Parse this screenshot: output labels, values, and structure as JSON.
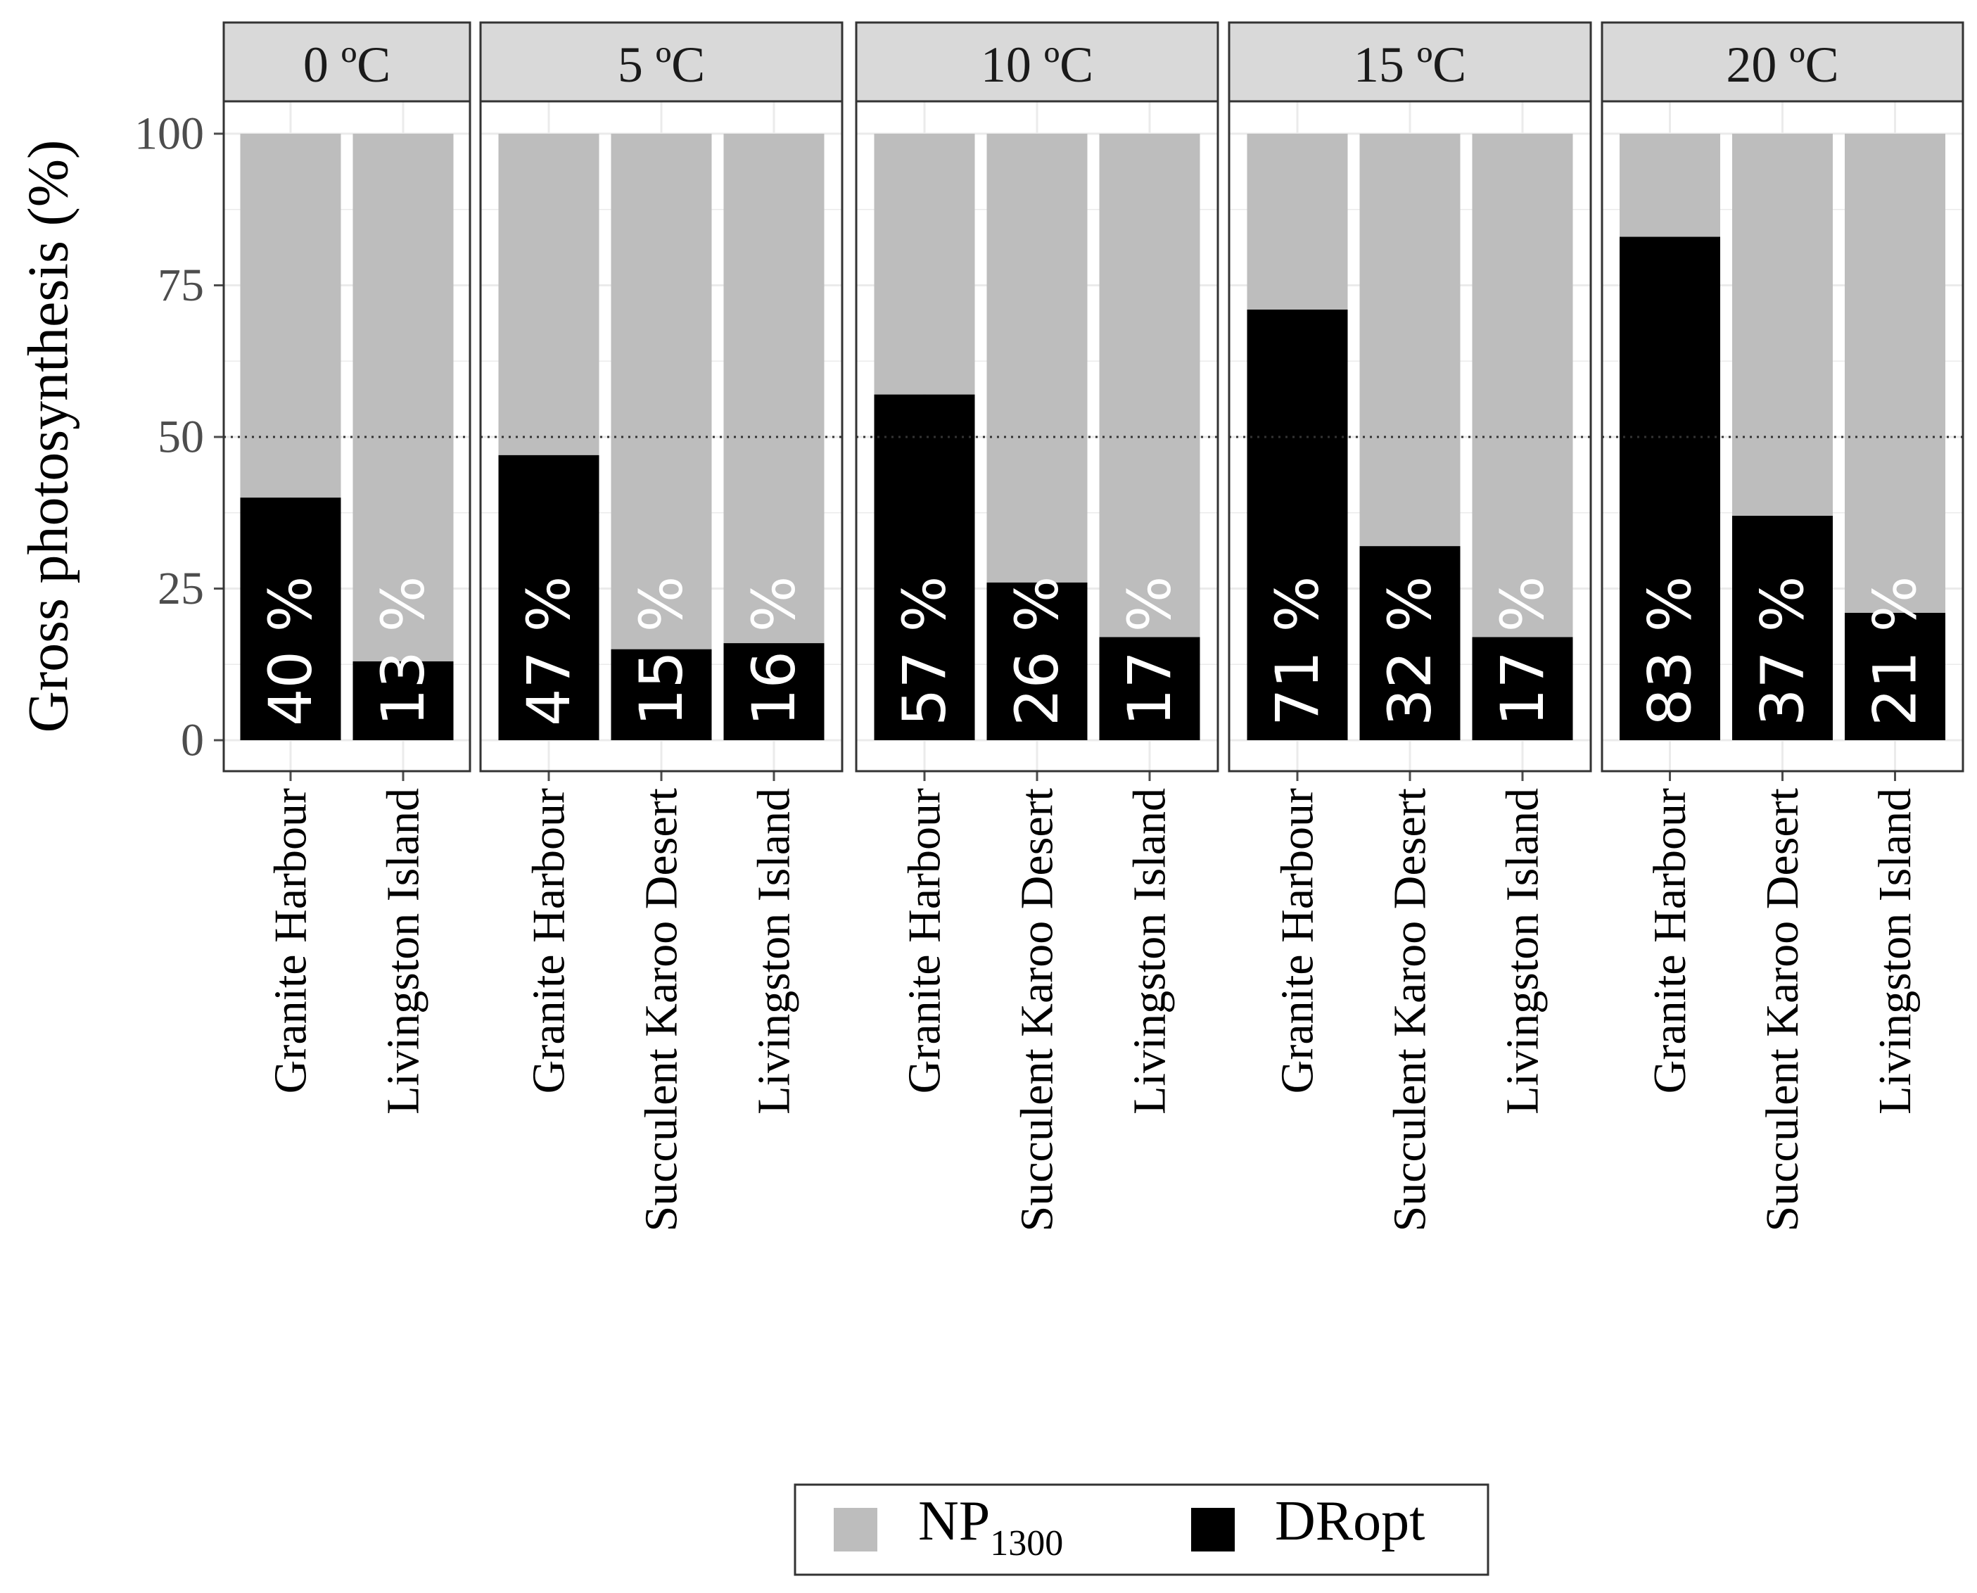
{
  "chart_data": {
    "type": "bar",
    "stacked": true,
    "ylabel": "Gross photosynthesis (%)",
    "ylim": [
      0,
      100
    ],
    "yticks": [
      0,
      25,
      50,
      75,
      100
    ],
    "reference_line": 50,
    "legend": {
      "position": "bottom",
      "items": [
        {
          "name": "NP",
          "subscript": "1300",
          "color": "#bdbdbd"
        },
        {
          "name": "DRopt",
          "subscript": "",
          "color": "#000000"
        }
      ]
    },
    "panels": [
      {
        "title": "0 ºC",
        "categories": [
          "Granite Harbour",
          "Livingston Island"
        ],
        "values": [
          40,
          13
        ],
        "labels": [
          "40 %",
          "13 %"
        ]
      },
      {
        "title": "5 ºC",
        "categories": [
          "Granite Harbour",
          "Succulent Karoo Desert",
          "Livingston Island"
        ],
        "values": [
          47,
          15,
          16
        ],
        "labels": [
          "47 %",
          "15 %",
          "16 %"
        ]
      },
      {
        "title": "10 ºC",
        "categories": [
          "Granite Harbour",
          "Succulent Karoo Desert",
          "Livingston Island"
        ],
        "values": [
          57,
          26,
          17
        ],
        "labels": [
          "57 %",
          "26 %",
          "17 %"
        ]
      },
      {
        "title": "15 ºC",
        "categories": [
          "Granite Harbour",
          "Succulent Karoo Desert",
          "Livingston Island"
        ],
        "values": [
          71,
          32,
          17
        ],
        "labels": [
          "71 %",
          "32 %",
          "17 %"
        ]
      },
      {
        "title": "20 ºC",
        "categories": [
          "Granite Harbour",
          "Succulent Karoo Desert",
          "Livingston Island"
        ],
        "values": [
          83,
          37,
          21
        ],
        "labels": [
          "83 %",
          "37 %",
          "21 %"
        ]
      }
    ]
  }
}
